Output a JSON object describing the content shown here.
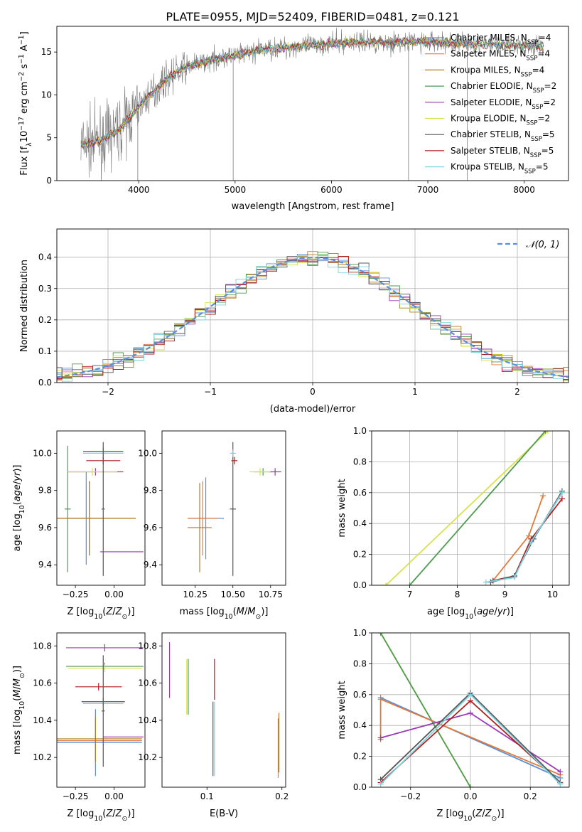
{
  "title": "PLATE=0955, MJD=52409, FIBERID=0481, z=0.121",
  "colors": {
    "Chabrier MILES": "#5b8fd6",
    "Salpeter MILES": "#e07a3c",
    "Kroupa MILES": "#b07b20",
    "Chabrier ELODIE": "#4f9b4f",
    "Salpeter ELODIE": "#9a38b5",
    "Kroupa ELODIE": "#d8e24a",
    "Chabrier STELIB": "#555555",
    "Salpeter STELIB": "#b21f1f",
    "Kroupa STELIB": "#7fd3e0"
  },
  "chart_data": [
    {
      "id": "spectrum",
      "type": "line",
      "xlabel": "wavelength [Angstrom, rest frame]",
      "ylabel": "Flux [f_λ10^-17 erg cm^-2 s^-1 A^-1]",
      "xlim": [
        3150,
        8460
      ],
      "ylim": [
        0,
        18
      ],
      "xticks": [
        4000,
        5000,
        6000,
        7000,
        8000
      ],
      "yticks": [
        0,
        5,
        10,
        15
      ],
      "grid": false,
      "legend_position": "right",
      "legend": [
        {
          "name": "Chabrier MILES",
          "nssp": "4"
        },
        {
          "name": "Salpeter MILES",
          "nssp": "4"
        },
        {
          "name": "Kroupa MILES",
          "nssp": "4"
        },
        {
          "name": "Chabrier ELODIE",
          "nssp": "2"
        },
        {
          "name": "Salpeter ELODIE",
          "nssp": "2"
        },
        {
          "name": "Kroupa ELODIE",
          "nssp": "2"
        },
        {
          "name": "Chabrier STELIB",
          "nssp": "5"
        },
        {
          "name": "Salpeter STELIB",
          "nssp": "5"
        },
        {
          "name": "Kroupa STELIB",
          "nssp": "5"
        }
      ],
      "continuum": {
        "x": [
          3400,
          3600,
          3800,
          3950,
          4100,
          4300,
          4500,
          4800,
          5000,
          5300,
          5600,
          6000,
          6300,
          6600,
          7000,
          7400,
          7800,
          8200
        ],
        "y": [
          4.2,
          4.6,
          6.0,
          8.0,
          9.8,
          12.0,
          13.3,
          14.2,
          14.6,
          15.3,
          15.6,
          16.0,
          16.2,
          16.1,
          16.2,
          16.0,
          15.8,
          15.7
        ]
      }
    },
    {
      "id": "residuals",
      "type": "bar",
      "xlabel": "(data-model)/error",
      "ylabel": "Normed distribution",
      "xlim": [
        -2.5,
        2.5
      ],
      "ylim": [
        0,
        0.49
      ],
      "xticks": [
        -2,
        -1,
        0,
        1,
        2
      ],
      "yticks": [
        0.0,
        0.1,
        0.2,
        0.3,
        0.4
      ],
      "grid": true,
      "legend_position": "top-right",
      "gaussian_label": "𝒩(0, 1)",
      "gaussian_color": "#5b8fd6"
    },
    {
      "id": "z-age",
      "type": "scatter",
      "xlabel": "Z [log10(Z/Z⊙)]",
      "ylabel": "age  [log10(age/yr)]",
      "xlim": [
        -0.37,
        0.2
      ],
      "ylim": [
        9.29,
        10.12
      ],
      "xticks": [
        -0.25,
        0.0
      ],
      "yticks": [
        9.4,
        9.6,
        9.8,
        10.0
      ],
      "points": [
        {
          "series": "Chabrier MILES",
          "x": -0.18,
          "xerr": 0.12,
          "y": 9.65,
          "yerr": 0.25
        },
        {
          "series": "Salpeter MILES",
          "x": -0.16,
          "xerr": 0.3,
          "y": 9.65,
          "yerr": 0.2
        },
        {
          "series": "Kroupa MILES",
          "x": -0.16,
          "xerr": 0.3,
          "y": 9.65,
          "yerr": 0.2
        },
        {
          "series": "Chabrier ELODIE",
          "x": -0.3,
          "xerr": 0.02,
          "y": 9.7,
          "yerr": 0.34
        },
        {
          "series": "Salpeter ELODIE",
          "x": -0.12,
          "xerr": 0.18,
          "y": 9.9,
          "yerr": 0.02
        },
        {
          "series": "Kroupa ELODIE",
          "x": -0.14,
          "xerr": 0.16,
          "y": 9.9,
          "yerr": 0.02
        },
        {
          "series": "Chabrier STELIB",
          "x": -0.07,
          "xerr": 0.13,
          "y": 10.01,
          "yerr": 0.02
        },
        {
          "series": "Salpeter STELIB",
          "x": -0.07,
          "xerr": 0.11,
          "y": 9.96,
          "yerr": 0.02
        },
        {
          "series": "Kroupa STELIB",
          "x": -0.07,
          "xerr": 0.13,
          "y": 10.0,
          "yerr": 0.02
        },
        {
          "series": "Chabrier STELIB",
          "x": -0.07,
          "xerr": 0.01,
          "y": 9.7,
          "yerr": 0.36
        },
        {
          "series": "Salpeter ELODIE",
          "x": 0.05,
          "xerr": 0.14,
          "y": 9.47,
          "yerr": 0.0
        }
      ]
    },
    {
      "id": "mass-age",
      "type": "scatter",
      "xlabel": "mass [log10(M/M⊙)]",
      "ylabel": "",
      "xlim": [
        10.03,
        10.85
      ],
      "ylim": [
        9.29,
        10.12
      ],
      "xticks": [
        10.25,
        10.5,
        10.75
      ],
      "yticks": [
        9.4,
        9.6,
        9.8,
        10.0
      ],
      "points": [
        {
          "series": "Chabrier MILES",
          "x": 10.32,
          "xerr": 0.12,
          "y": 9.65,
          "yerr": 0.22
        },
        {
          "series": "Salpeter MILES",
          "x": 10.3,
          "xerr": 0.1,
          "y": 9.65,
          "yerr": 0.2
        },
        {
          "series": "Kroupa MILES",
          "x": 10.28,
          "xerr": 0.08,
          "y": 9.6,
          "yerr": 0.24
        },
        {
          "series": "Chabrier ELODIE",
          "x": 10.7,
          "xerr": 0.06,
          "y": 9.9,
          "yerr": 0.02
        },
        {
          "series": "Salpeter ELODIE",
          "x": 10.78,
          "xerr": 0.04,
          "y": 9.9,
          "yerr": 0.02
        },
        {
          "series": "Kroupa ELODIE",
          "x": 10.68,
          "xerr": 0.07,
          "y": 9.9,
          "yerr": 0.02
        },
        {
          "series": "Chabrier STELIB",
          "x": 10.5,
          "xerr": 0.02,
          "y": 9.7,
          "yerr": 0.36
        },
        {
          "series": "Salpeter STELIB",
          "x": 10.51,
          "xerr": 0.02,
          "y": 9.96,
          "yerr": 0.02
        },
        {
          "series": "Kroupa STELIB",
          "x": 10.5,
          "xerr": 0.02,
          "y": 10.0,
          "yerr": 0.02
        }
      ]
    },
    {
      "id": "age-weight",
      "type": "line",
      "xlabel": "age  [log10(age/yr)]",
      "ylabel": "mass weight",
      "xlim": [
        6.2,
        10.35
      ],
      "ylim": [
        0,
        1.0
      ],
      "xticks": [
        7,
        8,
        9,
        10
      ],
      "yticks": [
        0.0,
        0.2,
        0.4,
        0.6,
        0.8,
        1.0
      ],
      "grid": true,
      "series": [
        {
          "name": "Kroupa ELODIE",
          "x": [
            6.5,
            9.9
          ],
          "y": [
            0.0,
            1.0
          ]
        },
        {
          "name": "Chabrier ELODIE",
          "x": [
            7.0,
            9.85
          ],
          "y": [
            0.0,
            1.0
          ]
        },
        {
          "name": "Salpeter MILES",
          "x": [
            8.75,
            9.5,
            9.8
          ],
          "y": [
            0.03,
            0.32,
            0.58
          ]
        },
        {
          "name": "Chabrier MILES",
          "x": [
            8.7,
            9.2,
            9.6,
            10.2
          ],
          "y": [
            0.02,
            0.06,
            0.3,
            0.6
          ]
        },
        {
          "name": "Salpeter STELIB",
          "x": [
            8.75,
            9.2,
            9.55,
            10.2
          ],
          "y": [
            0.03,
            0.06,
            0.3,
            0.56
          ]
        },
        {
          "name": "Chabrier STELIB",
          "x": [
            8.7,
            9.2,
            9.6,
            10.2
          ],
          "y": [
            0.02,
            0.06,
            0.3,
            0.61
          ]
        },
        {
          "name": "Kroupa STELIB",
          "x": [
            8.6,
            9.2,
            9.55,
            10.2
          ],
          "y": [
            0.02,
            0.05,
            0.28,
            0.6
          ]
        }
      ]
    },
    {
      "id": "z-mass",
      "type": "scatter",
      "xlabel": "Z [log10(Z/Z⊙)]",
      "ylabel": "mass [log10(M/M⊙)]",
      "xlim": [
        -0.37,
        0.2
      ],
      "ylim": [
        10.04,
        10.87
      ],
      "xticks": [
        -0.25,
        0.0
      ],
      "yticks": [
        10.2,
        10.4,
        10.6,
        10.8
      ],
      "points": [
        {
          "series": "Chabrier MILES",
          "x": -0.12,
          "xerr": 0.3,
          "y": 10.28,
          "yerr": 0.18
        },
        {
          "series": "Salpeter MILES",
          "x": -0.12,
          "xerr": 0.3,
          "y": 10.29,
          "yerr": 0.12
        },
        {
          "series": "Kroupa MILES",
          "x": -0.12,
          "xerr": 0.3,
          "y": 10.3,
          "yerr": 0.12
        },
        {
          "series": "Chabrier ELODIE",
          "x": -0.06,
          "xerr": 0.25,
          "y": 10.69,
          "yerr": 0.02
        },
        {
          "series": "Salpeter ELODIE",
          "x": -0.06,
          "xerr": 0.25,
          "y": 10.79,
          "yerr": 0.02
        },
        {
          "series": "Kroupa ELODIE",
          "x": -0.06,
          "xerr": 0.24,
          "y": 10.68,
          "yerr": 0.02
        },
        {
          "series": "Chabrier STELIB",
          "x": -0.07,
          "xerr": 0.14,
          "y": 10.5,
          "yerr": 0.02
        },
        {
          "series": "Salpeter STELIB",
          "x": -0.1,
          "xerr": 0.15,
          "y": 10.58,
          "yerr": 0.02
        },
        {
          "series": "Kroupa STELIB",
          "x": -0.07,
          "xerr": 0.13,
          "y": 10.49,
          "yerr": 0.02
        },
        {
          "series": "Chabrier STELIB",
          "x": -0.07,
          "xerr": 0.01,
          "y": 10.45,
          "yerr": 0.3
        },
        {
          "series": "Salpeter ELODIE",
          "x": 0.06,
          "xerr": 0.13,
          "y": 10.31,
          "yerr": 0.0
        }
      ]
    },
    {
      "id": "ebv-mass",
      "type": "scatter",
      "xlabel": "E(B-V)",
      "ylabel": "",
      "xlim": [
        0.04,
        0.205
      ],
      "ylim": [
        10.04,
        10.87
      ],
      "xticks": [
        0.1,
        0.2
      ],
      "yticks": [
        10.2,
        10.4,
        10.6,
        10.8
      ],
      "points": [
        {
          "series": "Salpeter ELODIE",
          "x": 0.05,
          "y": 10.67,
          "yerr": 0.15
        },
        {
          "series": "Kroupa ELODIE",
          "x": 0.073,
          "y": 10.58,
          "yerr": 0.15
        },
        {
          "series": "Chabrier ELODIE",
          "x": 0.075,
          "y": 10.58,
          "yerr": 0.15
        },
        {
          "series": "Salpeter STELIB",
          "x": 0.11,
          "y": 10.62,
          "yerr": 0.11
        },
        {
          "series": "Kroupa STELIB",
          "x": 0.11,
          "y": 10.3,
          "yerr": 0.2
        },
        {
          "series": "Chabrier STELIB",
          "x": 0.108,
          "y": 10.3,
          "yerr": 0.2
        },
        {
          "series": "Salpeter MILES",
          "x": 0.195,
          "y": 10.25,
          "yerr": 0.16
        },
        {
          "series": "Kroupa MILES",
          "x": 0.196,
          "y": 10.28,
          "yerr": 0.16
        }
      ]
    },
    {
      "id": "z-weight",
      "type": "line",
      "xlabel": "Z [log10(Z/Z⊙)]",
      "ylabel": "mass weight",
      "xlim": [
        -0.33,
        0.33
      ],
      "ylim": [
        0,
        1.0
      ],
      "xticks": [
        -0.2,
        0.0,
        0.2
      ],
      "yticks": [
        0.0,
        0.2,
        0.4,
        0.6,
        0.8,
        1.0
      ],
      "grid": true,
      "series": [
        {
          "name": "Kroupa ELODIE",
          "x": [
            -0.3,
            0.0
          ],
          "y": [
            1.0,
            0.0
          ]
        },
        {
          "name": "Chabrier ELODIE",
          "x": [
            -0.3,
            0.0
          ],
          "y": [
            1.0,
            0.0
          ]
        },
        {
          "name": "Chabrier MILES",
          "x": [
            -0.3,
            0.3
          ],
          "y": [
            0.58,
            0.06
          ]
        },
        {
          "name": "Salpeter MILES",
          "x": [
            -0.3,
            -0.3,
            0.3
          ],
          "y": [
            0.31,
            0.57,
            0.08
          ]
        },
        {
          "name": "Salpeter ELODIE",
          "x": [
            -0.3,
            0.0,
            0.3
          ],
          "y": [
            0.32,
            0.48,
            0.1
          ]
        },
        {
          "name": "Salpeter STELIB",
          "x": [
            -0.3,
            0.0,
            0.3
          ],
          "y": [
            0.03,
            0.56,
            0.03
          ]
        },
        {
          "name": "Chabrier STELIB",
          "x": [
            -0.3,
            0.0,
            0.3
          ],
          "y": [
            0.05,
            0.61,
            0.03
          ]
        },
        {
          "name": "Kroupa STELIB",
          "x": [
            -0.3,
            0.0,
            0.3
          ],
          "y": [
            0.02,
            0.6,
            0.02
          ]
        }
      ]
    }
  ]
}
